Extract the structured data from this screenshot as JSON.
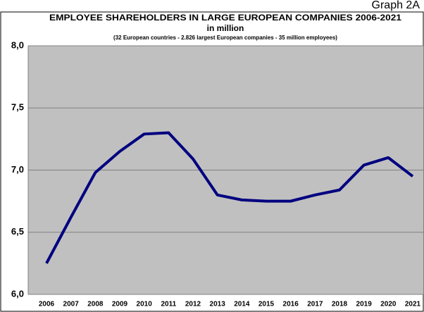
{
  "chart_data": {
    "type": "line",
    "title": "EMPLOYEE SHAREHOLDERS IN LARGE EUROPEAN COMPANIES 2006-2021",
    "subtitle": "in million",
    "note": "(32 European countries - 2.826 largest European companies - 35 million employees)",
    "annotation": "Graph 2A",
    "categories": [
      "2006",
      "2007",
      "2008",
      "2009",
      "2010",
      "2011",
      "2012",
      "2013",
      "2014",
      "2015",
      "2016",
      "2017",
      "2018",
      "2019",
      "2020",
      "2021"
    ],
    "series": [
      {
        "name": "Employee shareholders",
        "color": "#000080",
        "values": [
          6.25,
          6.62,
          6.98,
          7.15,
          7.29,
          7.3,
          7.09,
          6.8,
          6.76,
          6.75,
          6.75,
          6.8,
          6.84,
          7.04,
          7.1,
          6.95
        ]
      }
    ],
    "ylim": [
      6.0,
      8.0
    ],
    "yticks": [
      {
        "value": 6.0,
        "label": "6,0"
      },
      {
        "value": 6.5,
        "label": "6,5"
      },
      {
        "value": 7.0,
        "label": "7,0"
      },
      {
        "value": 7.5,
        "label": "7,5"
      },
      {
        "value": 8.0,
        "label": "8,0"
      }
    ],
    "grid": true
  }
}
